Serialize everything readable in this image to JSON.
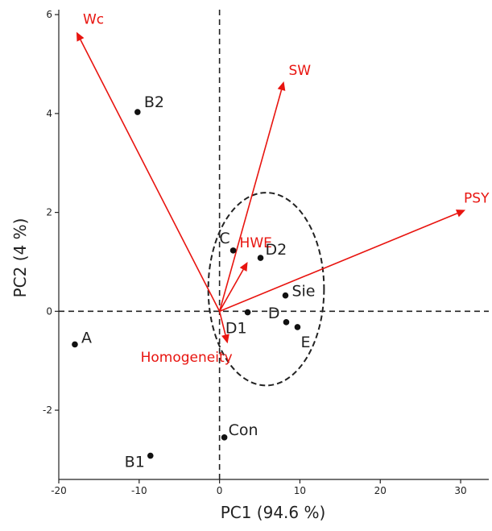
{
  "chart_data": {
    "type": "scatter",
    "title": "",
    "xlabel": "PC1 (94.6 %)",
    "ylabel": "PC2 (4 %)",
    "xlim": [
      -20,
      33.5
    ],
    "ylim": [
      -3.4,
      6.1
    ],
    "xticks": [
      -20,
      -10,
      0,
      10,
      20,
      30
    ],
    "yticks": [
      -2,
      0,
      2,
      4,
      6
    ],
    "grid": false,
    "origin_lines": true,
    "points": [
      {
        "label": "B2",
        "x": -10.2,
        "y": 4.03
      },
      {
        "label": "A",
        "x": -18.0,
        "y": -0.67
      },
      {
        "label": "B1",
        "x": -8.6,
        "y": -2.92
      },
      {
        "label": "C",
        "x": 1.7,
        "y": 1.23
      },
      {
        "label": "D2",
        "x": 5.1,
        "y": 1.08
      },
      {
        "label": "Sie",
        "x": 8.2,
        "y": 0.32
      },
      {
        "label": "D",
        "x": 8.3,
        "y": -0.22
      },
      {
        "label": "D1",
        "x": 3.5,
        "y": -0.02
      },
      {
        "label": "E",
        "x": 9.7,
        "y": -0.32
      },
      {
        "label": "Con",
        "x": 0.6,
        "y": -2.55
      }
    ],
    "vectors": [
      {
        "label": "Wc",
        "x": -17.8,
        "y": 5.65
      },
      {
        "label": "SW",
        "x": 8.0,
        "y": 4.65
      },
      {
        "label": "PSY",
        "x": 30.6,
        "y": 2.05
      },
      {
        "label": "HWE",
        "x": 3.5,
        "y": 1.0
      },
      {
        "label": "Homogeneity",
        "x": 1.0,
        "y": -0.65
      }
    ],
    "ellipse": {
      "cx": 5.8,
      "cy": 0.45,
      "rx": 7.2,
      "ry": 1.95
    },
    "colors": {
      "points": "#111111",
      "vectors": "#e8140f",
      "axes": "#222222"
    }
  }
}
